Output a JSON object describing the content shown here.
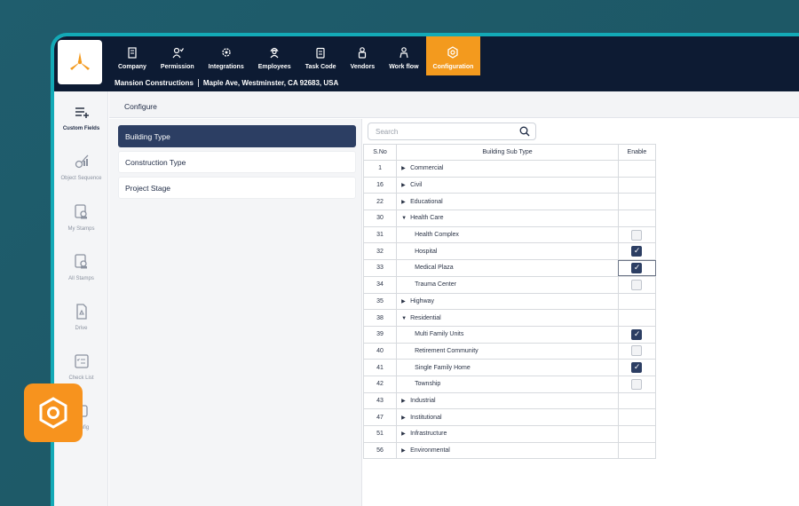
{
  "colors": {
    "accent": "#f39a1e",
    "navy": "#0d1b33",
    "active_tab": "#2c3e63",
    "frame": "#13aab7"
  },
  "nav": [
    {
      "label": "Company",
      "icon": "building-icon"
    },
    {
      "label": "Permission",
      "icon": "user-check-icon"
    },
    {
      "label": "Integrations",
      "icon": "gears-icon"
    },
    {
      "label": "Employees",
      "icon": "worker-icon"
    },
    {
      "label": "Task Code",
      "icon": "clipboard-icon"
    },
    {
      "label": "Vendors",
      "icon": "vendor-icon"
    },
    {
      "label": "Work flow",
      "icon": "workflow-icon"
    },
    {
      "label": "Configuration",
      "icon": "config-gear-icon",
      "active": true
    }
  ],
  "company": {
    "name": "Mansion Constructions",
    "address": "Maple Ave, Westminster, CA 92683, USA"
  },
  "rail": [
    {
      "label": "Custom Fields",
      "icon": "add-list-icon"
    },
    {
      "label": "Object Sequence",
      "icon": "object-sequence-icon"
    },
    {
      "label": "My Stamps",
      "icon": "stamp-icon"
    },
    {
      "label": "All Stamps",
      "icon": "stamps-icon"
    },
    {
      "label": "Drive",
      "icon": "drive-icon"
    },
    {
      "label": "Check List",
      "icon": "checklist-icon"
    },
    {
      "label": "Config",
      "icon": "config-icon"
    }
  ],
  "page": {
    "title": "Configure"
  },
  "categories": [
    "Building Type",
    "Construction Type",
    "Project Stage"
  ],
  "search": {
    "placeholder": "Search"
  },
  "table": {
    "headers": [
      "S.No",
      "Building Sub Type",
      "Enable"
    ],
    "rows": [
      {
        "sno": "1",
        "name": "Commercial",
        "kind": "collapsed"
      },
      {
        "sno": "16",
        "name": "Civil",
        "kind": "collapsed"
      },
      {
        "sno": "22",
        "name": "Educational",
        "kind": "collapsed"
      },
      {
        "sno": "30",
        "name": "Health Care",
        "kind": "expanded"
      },
      {
        "sno": "31",
        "name": "Health Complex",
        "kind": "child",
        "enabled": false
      },
      {
        "sno": "32",
        "name": "Hospital",
        "kind": "child",
        "enabled": true
      },
      {
        "sno": "33",
        "name": "Medical Plaza",
        "kind": "child",
        "enabled": true,
        "focus": true
      },
      {
        "sno": "34",
        "name": "Trauma Center",
        "kind": "child",
        "enabled": false
      },
      {
        "sno": "35",
        "name": "Highway",
        "kind": "collapsed"
      },
      {
        "sno": "38",
        "name": "Residential",
        "kind": "expanded"
      },
      {
        "sno": "39",
        "name": "Multi Family Units",
        "kind": "child",
        "enabled": true
      },
      {
        "sno": "40",
        "name": "Retirement Community",
        "kind": "child",
        "enabled": false
      },
      {
        "sno": "41",
        "name": "Single Family Home",
        "kind": "child",
        "enabled": true
      },
      {
        "sno": "42",
        "name": "Township",
        "kind": "child",
        "enabled": false
      },
      {
        "sno": "43",
        "name": "Industrial",
        "kind": "collapsed"
      },
      {
        "sno": "47",
        "name": "Institutional",
        "kind": "collapsed"
      },
      {
        "sno": "51",
        "name": "Infrastructure",
        "kind": "collapsed"
      },
      {
        "sno": "56",
        "name": "Environmental",
        "kind": "collapsed"
      }
    ]
  }
}
